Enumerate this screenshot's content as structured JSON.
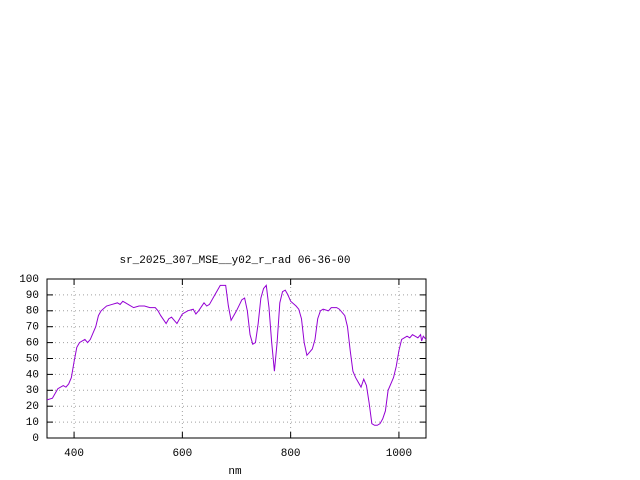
{
  "chart_data": {
    "type": "line",
    "title": "sr_2025_307_MSE__y02_r_rad 06-36-00",
    "x_label": "nm",
    "xlim": [
      350,
      1050
    ],
    "xticks": [
      400,
      600,
      800,
      1000
    ],
    "ylim": [
      0,
      100
    ],
    "yticks": [
      0,
      10,
      20,
      30,
      40,
      50,
      60,
      70,
      80,
      90,
      100
    ],
    "grid": true,
    "x": [
      350,
      360,
      370,
      380,
      385,
      390,
      395,
      400,
      405,
      410,
      420,
      425,
      430,
      440,
      445,
      450,
      460,
      470,
      480,
      485,
      490,
      495,
      500,
      510,
      520,
      530,
      540,
      550,
      555,
      560,
      570,
      575,
      580,
      590,
      600,
      610,
      620,
      625,
      630,
      640,
      645,
      650,
      660,
      670,
      680,
      685,
      690,
      700,
      710,
      715,
      720,
      725,
      730,
      735,
      740,
      745,
      750,
      755,
      760,
      765,
      770,
      775,
      780,
      785,
      790,
      795,
      800,
      810,
      815,
      820,
      825,
      830,
      835,
      840,
      845,
      850,
      855,
      860,
      870,
      875,
      885,
      890,
      900,
      905,
      910,
      915,
      920,
      925,
      930,
      935,
      940,
      945,
      950,
      955,
      960,
      965,
      970,
      975,
      980,
      990,
      995,
      1000,
      1005,
      1010,
      1015,
      1020,
      1025,
      1030,
      1035,
      1040,
      1042,
      1045,
      1050
    ],
    "series": [
      {
        "name": "sr_2025_307_MSE__y02_r_rad 06-36-00",
        "color": "#9400d3",
        "values": [
          24,
          25,
          31,
          33,
          32,
          34,
          38,
          48,
          57,
          60,
          62,
          60,
          62,
          70,
          77,
          80,
          83,
          84,
          85,
          84,
          86,
          85,
          84,
          82,
          83,
          83,
          82,
          82,
          80,
          77,
          72,
          75,
          76,
          72,
          78,
          80,
          81,
          78,
          80,
          85,
          83,
          84,
          90,
          96,
          96,
          83,
          74,
          80,
          87,
          88,
          80,
          65,
          59,
          60,
          72,
          88,
          94,
          96,
          82,
          60,
          42,
          60,
          85,
          92,
          93,
          90,
          86,
          83,
          81,
          75,
          60,
          52,
          54,
          56,
          62,
          75,
          80,
          81,
          80,
          82,
          82,
          81,
          77,
          70,
          55,
          42,
          38,
          35,
          32,
          37,
          33,
          22,
          9,
          8,
          8,
          9,
          12,
          17,
          30,
          38,
          45,
          55,
          62,
          63,
          64,
          63,
          65,
          64,
          63,
          65,
          61,
          64,
          62
        ]
      }
    ]
  }
}
